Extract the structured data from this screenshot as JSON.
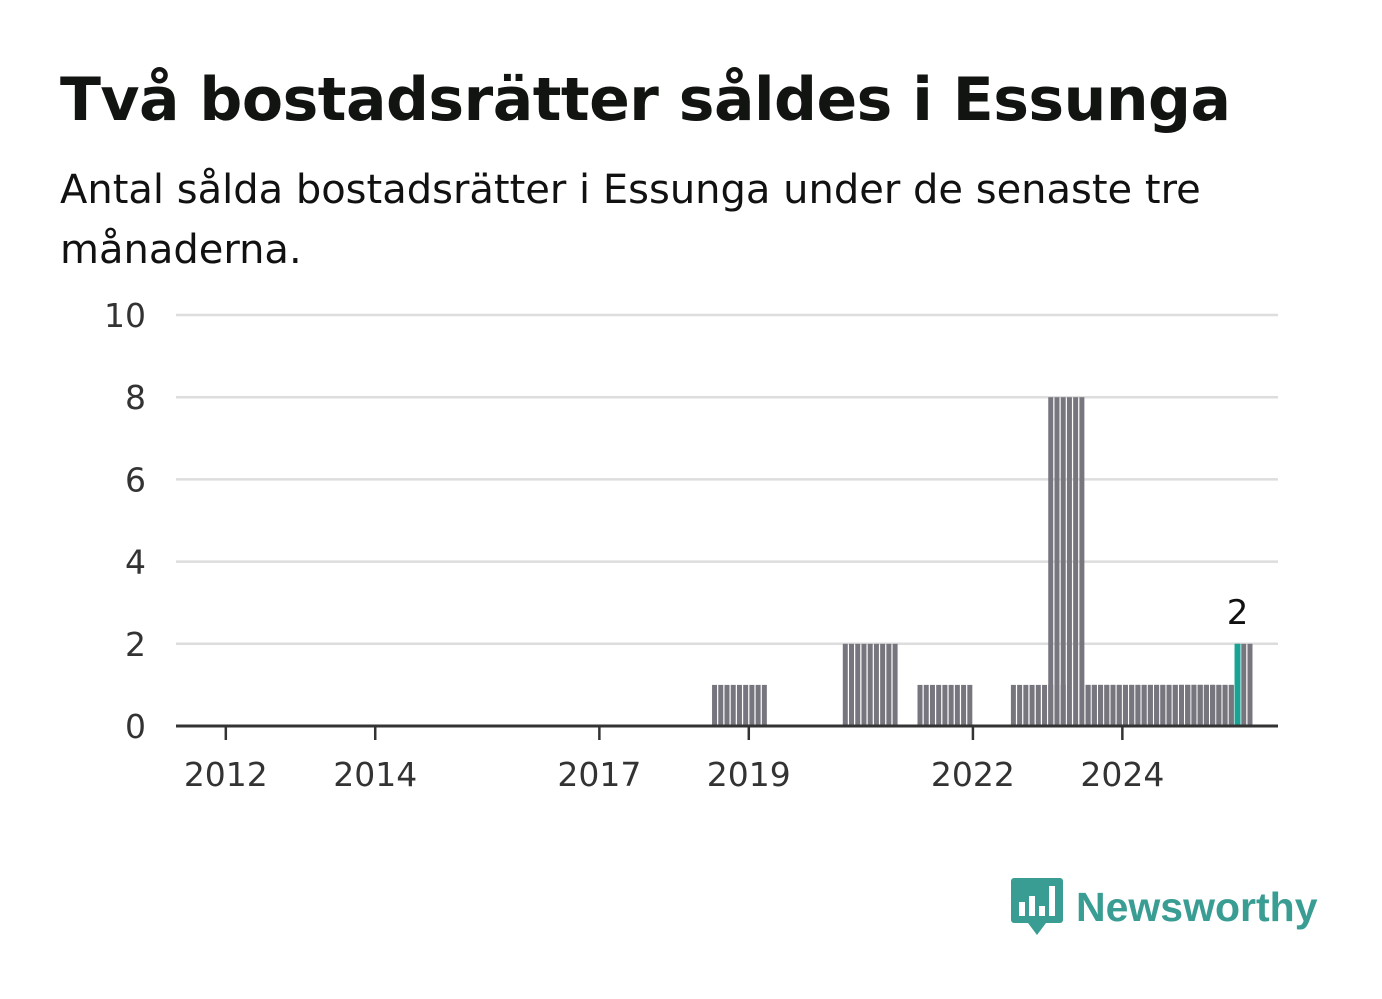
{
  "chart_data": {
    "type": "bar",
    "title": "Två bostadsrätter såldes i Essunga",
    "subtitle": "Antal sålda bostadsrätter i Essunga under de senaste tre månaderna.",
    "xlabel": "",
    "ylabel": "",
    "ylim": [
      0,
      10
    ],
    "xlim": [
      "2011-05",
      "2026-02"
    ],
    "y_ticks": [
      "0",
      "2",
      "4",
      "6",
      "8",
      "10"
    ],
    "x_ticks": [
      {
        "date": "2012-01",
        "label": "2012"
      },
      {
        "date": "2014-01",
        "label": "2014"
      },
      {
        "date": "2017-01",
        "label": "2017"
      },
      {
        "date": "2019-01",
        "label": "2019"
      },
      {
        "date": "2022-01",
        "label": "2022"
      },
      {
        "date": "2024-01",
        "label": "2024"
      }
    ],
    "grid": true,
    "periods": [
      "2018-Q3",
      "2018-Q4",
      "2019-Q1",
      "2020-Q2",
      "2020-Q3",
      "2020-Q4",
      "2021-Q2",
      "2021-Q3",
      "2021-Q4",
      "2022-Q3",
      "2022-Q4",
      "2023-Q1",
      "2023-Q1",
      "2023-Q2",
      "2023-Q3",
      "2023-Q3",
      "2023-Q4",
      "2024-Q1",
      "2023-Q4",
      "2024-Q1",
      "2024-Q2",
      "2024-Q2",
      "2024-Q3",
      "2024-Q4",
      "2024-Q3",
      "2024-Q4",
      "2025-Q1",
      "2024-Q4",
      "2025-Q1",
      "2025-Q2",
      "2025-Q1",
      "2025-Q2",
      "2025-Q3"
    ],
    "values": [
      1,
      1,
      1,
      2,
      2,
      2,
      1,
      1,
      1,
      1,
      1,
      1,
      8,
      8,
      1,
      1,
      1,
      1,
      1,
      1,
      1,
      1,
      1,
      1,
      1,
      1,
      1,
      1,
      1,
      1,
      1,
      1,
      2
    ],
    "highlight": {
      "date": "2025-07",
      "value": 2,
      "label": "2"
    },
    "colors": {
      "bar": "#77757e",
      "highlight": "#1aa394",
      "grid": "#dddddd",
      "axis": "#333333"
    }
  },
  "brand": {
    "name": "Newsworthy",
    "logo_color": "#3a9d93",
    "icon": "bar-chart-speech-bubble-icon"
  }
}
